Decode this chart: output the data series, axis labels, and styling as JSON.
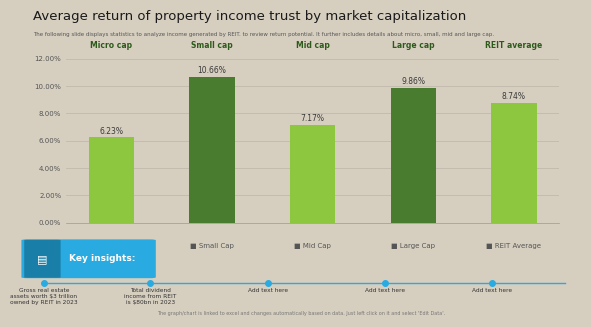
{
  "title": "Average return of property income trust by market capitalization",
  "subtitle": "The following slide displays statistics to analyze income generated by REIT. to review return potential. It further includes details about micro, small, mid and large cap.",
  "categories": [
    "Micro Cap",
    "Small Cap",
    "Mid Cap",
    "Large Cap",
    "REIT Average"
  ],
  "cap_labels": [
    "Micro cap",
    "Small cap",
    "Mid cap",
    "Large cap",
    "REIT average"
  ],
  "values": [
    6.23,
    10.66,
    7.17,
    9.86,
    8.74
  ],
  "bar_colors": [
    "#8dc63f",
    "#4a7c30",
    "#8dc63f",
    "#4a7c30",
    "#8dc63f"
  ],
  "label_bg_color": "#8dc63f",
  "label_text_color": "#2d5a1b",
  "background_color": "#d6cfc0",
  "chart_bg_color": "#d6cfc0",
  "ylim": [
    0,
    12
  ],
  "ytick_labels": [
    "0.00%",
    "2.00%",
    "4.00%",
    "6.00%",
    "8.00%",
    "10.00%",
    "12.00%"
  ],
  "ytick_values": [
    0,
    2,
    4,
    6,
    8,
    10,
    12
  ],
  "value_labels": [
    "6.23%",
    "10.66%",
    "7.17%",
    "9.86%",
    "8.74%"
  ],
  "footer_note": "The graph/chart is linked to excel and changes automatically based on data. Just left click on it and select 'Edit Data'.",
  "key_insights_label": "Key insights:",
  "key_bg_color": "#29abe2",
  "key_icon_bg": "#1a7fa8",
  "insight_texts": [
    "Gross real estate\nassets worth $3 trillion\nowned by REIT in 2023",
    "Total dividend\nincome from REIT\nis $80bn in 2023",
    "Add text here",
    "Add text here",
    "Add text here"
  ],
  "dot_color": "#29abe2",
  "line_color": "#29abe2"
}
